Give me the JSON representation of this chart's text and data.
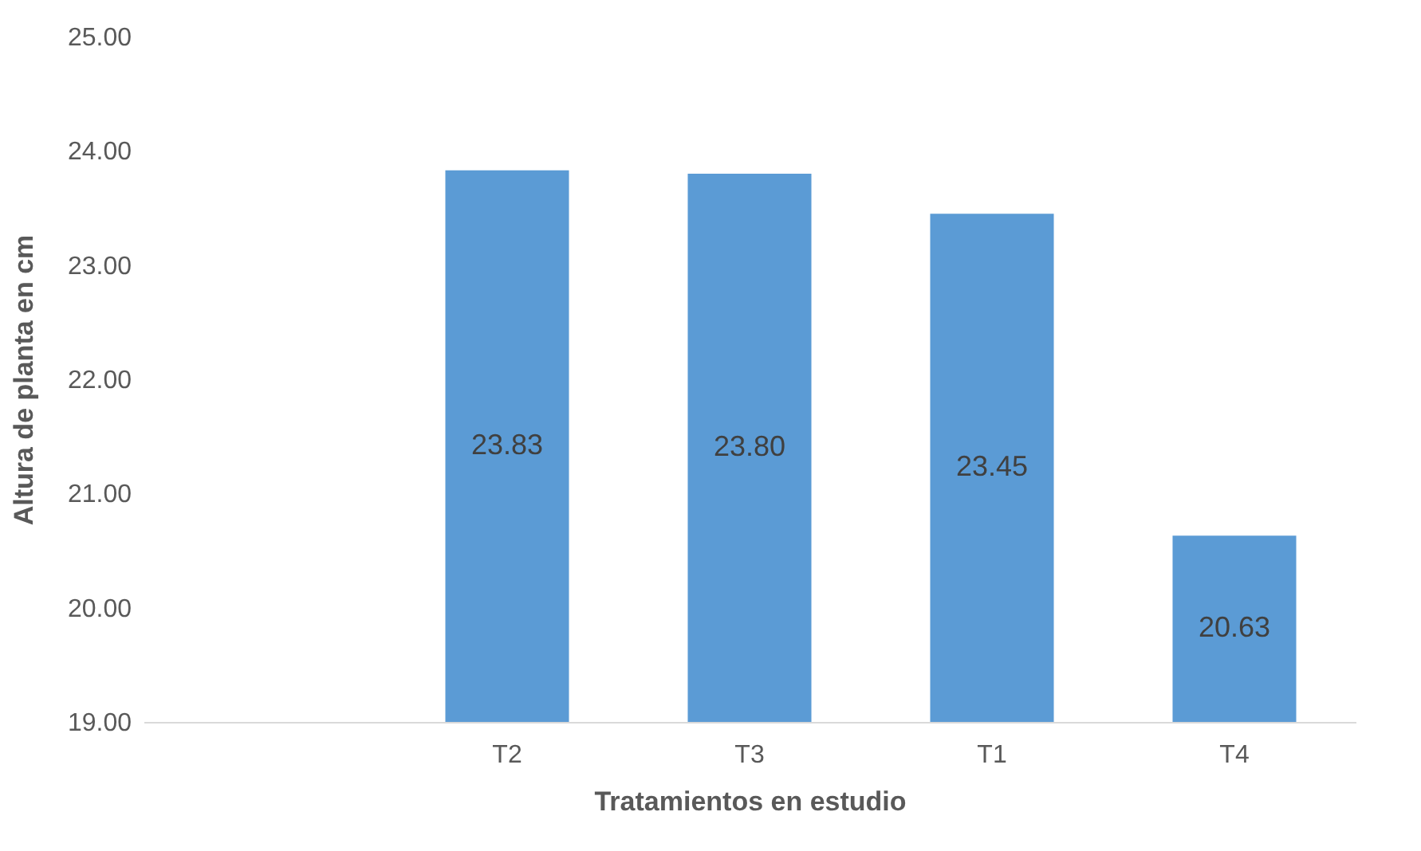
{
  "chart_data": {
    "type": "bar",
    "xlabel": "Tratamientos en estudio",
    "ylabel": "Altura de planta en cm",
    "categories": [
      null,
      "T2",
      "T3",
      "T1",
      "T4"
    ],
    "values": [
      null,
      23.83,
      23.8,
      23.45,
      20.63
    ],
    "value_labels": [
      null,
      "23.83",
      "23.80",
      "23.45",
      "20.63"
    ],
    "color": "#5b9bd5",
    "ylim": [
      19,
      25
    ],
    "yticks": [
      {
        "value": 19,
        "label": "19.00"
      },
      {
        "value": 20,
        "label": "20.00"
      },
      {
        "value": 21,
        "label": "21.00"
      },
      {
        "value": 22,
        "label": "22.00"
      },
      {
        "value": 23,
        "label": "23.00"
      },
      {
        "value": 24,
        "label": "24.00"
      },
      {
        "value": 25,
        "label": "25.00"
      }
    ],
    "grid": false
  }
}
